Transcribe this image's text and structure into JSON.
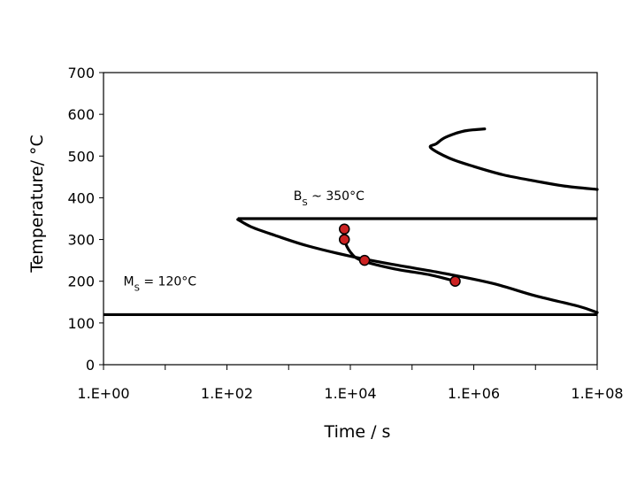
{
  "chart_data": {
    "type": "line",
    "title": "",
    "xlabel": "Time / s",
    "ylabel": "Temperature/ °C",
    "x_scale": "log",
    "xlim": [
      1,
      100000000
    ],
    "ylim": [
      0,
      700
    ],
    "x_ticks": [
      1,
      10,
      100,
      1000,
      10000,
      100000,
      1000000,
      10000000,
      100000000
    ],
    "x_tick_labels": [
      "1.E+00",
      "",
      "1.E+02",
      "",
      "1.E+04",
      "",
      "1.E+06",
      "",
      "1.E+08"
    ],
    "y_ticks": [
      0,
      100,
      200,
      300,
      400,
      500,
      600,
      700
    ],
    "y_tick_labels": [
      "0",
      "100",
      "200",
      "300",
      "400",
      "500",
      "600",
      "700"
    ],
    "grid": false,
    "series": [
      {
        "kind": "curve",
        "color": "#000000",
        "points": [
          [
            1500000,
            565
          ],
          [
            700000,
            560
          ],
          [
            350000,
            545
          ],
          [
            250000,
            530
          ],
          [
            200000,
            520
          ],
          [
            400000,
            495
          ],
          [
            1000000,
            475
          ],
          [
            3000000,
            455
          ],
          [
            10000000,
            440
          ],
          [
            30000000,
            428
          ],
          [
            100000000,
            420
          ]
        ]
      },
      {
        "kind": "curve",
        "color": "#000000",
        "points": [
          [
            150,
            348
          ],
          [
            250,
            330
          ],
          [
            600,
            310
          ],
          [
            2000,
            285
          ],
          [
            10000,
            260
          ],
          [
            50000,
            240
          ],
          [
            300000,
            220
          ],
          [
            2000000,
            195
          ],
          [
            10000000,
            165
          ],
          [
            50000000,
            140
          ],
          [
            100000000,
            125
          ]
        ]
      },
      {
        "kind": "curve",
        "color": "#000000",
        "points": [
          [
            8000,
            325
          ],
          [
            8000,
            300
          ],
          [
            10000,
            270
          ],
          [
            15000,
            250
          ],
          [
            50000,
            230
          ],
          [
            200000,
            215
          ],
          [
            500000,
            200
          ]
        ]
      },
      {
        "kind": "hline",
        "color": "#000000",
        "x": [
          150,
          100000000
        ],
        "y": 350
      },
      {
        "kind": "hline",
        "color": "#000000",
        "x": [
          1,
          100000000
        ],
        "y": 120
      },
      {
        "kind": "markers",
        "color": "#cc2222",
        "points": [
          [
            8000,
            325
          ],
          [
            8000,
            300
          ],
          [
            17000,
            250
          ],
          [
            500000,
            200
          ]
        ]
      }
    ],
    "annotations": [
      {
        "text": "B",
        "sub": "S",
        "rest": " ~ 350°C",
        "x": 1200,
        "y": 395
      },
      {
        "text": "M",
        "sub": "S",
        "rest": " = 120°C",
        "x": 2.1,
        "y": 190
      }
    ]
  }
}
